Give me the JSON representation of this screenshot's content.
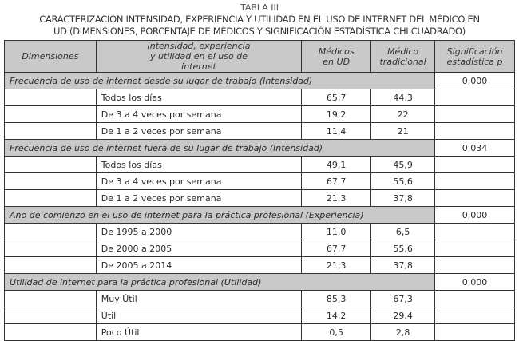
{
  "caption": {
    "label": "TABLA III",
    "title_line1": "CARACTERIZACIÓN INTENSIDAD, EXPERIENCIA Y UTILIDAD EN EL USO DE INTERNET DEL MÉDICO EN",
    "title_line2": "UD (DIMENSIONES, PORCENTAJE DE MÉDICOS Y SIGNIFICACIÓN ESTADÍSTICA CHI CUADRADO)"
  },
  "headers": [
    "Dimensiones",
    "Intensidad, experiencia y utilidad en el uso de internet",
    "Médicos en UD",
    "Médico tradicional",
    "Significación estadística p"
  ],
  "groups": [
    {
      "title": "Frecuencia de uso de internet desde su lugar de trabajo (Intensidad)",
      "p": "0,000",
      "rows": [
        {
          "label": "Todos los días",
          "ud": "65,7",
          "trad": "44,3"
        },
        {
          "label": "De 3 a 4 veces por semana",
          "ud": "19,2",
          "trad": "22"
        },
        {
          "label": "De 1 a 2 veces por semana",
          "ud": "11,4",
          "trad": "21"
        }
      ]
    },
    {
      "title": "Frecuencia de uso de internet fuera de su lugar de trabajo (Intensidad)",
      "p": "0,034",
      "rows": [
        {
          "label": "Todos los días",
          "ud": "49,1",
          "trad": "45,9"
        },
        {
          "label": "De 3 a 4 veces por semana",
          "ud": "67,7",
          "trad": "55,6"
        },
        {
          "label": "De 1 a 2 veces por semana",
          "ud": "21,3",
          "trad": "37,8"
        }
      ]
    },
    {
      "title": "Año de comienzo en el uso de internet para la práctica profesional (Experiencia)",
      "p": "0,000",
      "rows": [
        {
          "label": "De 1995 a 2000",
          "ud": "11,0",
          "trad": "6,5"
        },
        {
          "label": "De 2000 a 2005",
          "ud": "67,7",
          "trad": "55,6"
        },
        {
          "label": "De 2005 a 2014",
          "ud": "21,3",
          "trad": "37,8"
        }
      ]
    },
    {
      "title": "Utilidad de internet para la práctica profesional (Utilidad)",
      "p": "0,000",
      "rows": [
        {
          "label": "Muy Útil",
          "ud": "85,3",
          "trad": "67,3"
        },
        {
          "label": "Útil",
          "ud": "14,2",
          "trad": "29,4"
        },
        {
          "label": "Poco Útil",
          "ud": "0,5",
          "trad": "2,8"
        }
      ]
    }
  ]
}
